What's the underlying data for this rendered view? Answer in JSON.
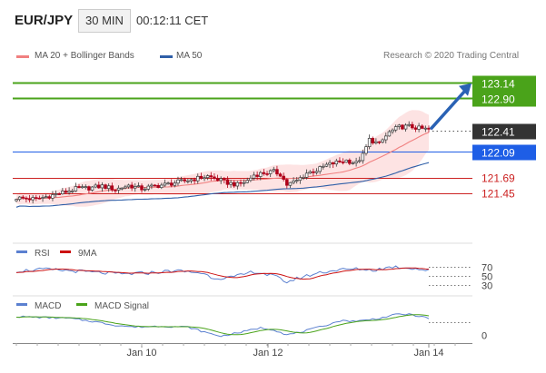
{
  "header": {
    "pair": "EUR/JPY",
    "interval": "30 MIN",
    "time": "00:12:11 CET"
  },
  "legend": {
    "ma20_label": "MA 20 + Bollinger Bands",
    "ma50_label": "MA 50",
    "credit": "Research © 2020 Trading Central"
  },
  "colors": {
    "candle_up": "#3a3a3a",
    "candle_down": "#b0001a",
    "ma20": "#f08080",
    "ma50": "#2f5fa8",
    "bollinger_fill": "#fde3e3",
    "green_level": "#4aa31a",
    "blue_level": "#1e5ee6",
    "red_level": "#cc2222",
    "arrow": "#2a62b4",
    "rsi": "#5b80d0",
    "rsi_ma": "#cc1111",
    "macd": "#5b80d0",
    "macd_signal": "#4aa31a"
  },
  "chart_data": [
    {
      "type": "candlestick",
      "title": "EUR/JPY",
      "ylim": [
        120.8,
        123.4
      ],
      "x_ticks": [
        "Jan 10",
        "Jan 12",
        "Jan 14"
      ],
      "price_levels": [
        {
          "value": 123.14,
          "label": "123.14",
          "style": "green-line-tag"
        },
        {
          "value": 122.9,
          "label": "122.90",
          "style": "green-line-tag"
        },
        {
          "value": 122.41,
          "label": "122.41",
          "style": "current-price-tag"
        },
        {
          "value": 122.09,
          "label": "122.09",
          "style": "blue-line-tag"
        },
        {
          "value": 121.69,
          "label": "121.69",
          "style": "red-line-text"
        },
        {
          "value": 121.45,
          "label": "121.45",
          "style": "red-line-text"
        }
      ],
      "price_anchors": [
        [
          0,
          121.38
        ],
        [
          6,
          121.36
        ],
        [
          10,
          121.41
        ],
        [
          14,
          121.46
        ],
        [
          18,
          121.52
        ],
        [
          22,
          121.53
        ],
        [
          26,
          121.56
        ],
        [
          30,
          121.51
        ],
        [
          34,
          121.57
        ],
        [
          38,
          121.52
        ],
        [
          42,
          121.56
        ],
        [
          46,
          121.59
        ],
        [
          50,
          121.63
        ],
        [
          54,
          121.67
        ],
        [
          58,
          121.71
        ],
        [
          61,
          121.66
        ],
        [
          64,
          121.61
        ],
        [
          67,
          121.58
        ],
        [
          70,
          121.64
        ],
        [
          72,
          121.73
        ],
        [
          75,
          121.76
        ],
        [
          78,
          121.78
        ],
        [
          80,
          121.74
        ],
        [
          82,
          121.58
        ],
        [
          85,
          121.64
        ],
        [
          88,
          121.76
        ],
        [
          91,
          121.8
        ],
        [
          94,
          121.88
        ],
        [
          97,
          121.92
        ],
        [
          100,
          121.95
        ],
        [
          103,
          121.91
        ],
        [
          105,
          122.03
        ],
        [
          107,
          122.27
        ],
        [
          110,
          122.2
        ],
        [
          113,
          122.38
        ],
        [
          116,
          122.46
        ],
        [
          119,
          122.47
        ],
        [
          122,
          122.44
        ],
        [
          125,
          122.42
        ]
      ],
      "series": [
        {
          "name": "MA 20 + Bollinger Bands"
        },
        {
          "name": "MA 50"
        }
      ]
    },
    {
      "type": "line",
      "series": [
        {
          "name": "RSI"
        },
        {
          "name": "9MA"
        }
      ],
      "reference_levels": [
        70,
        50,
        30
      ],
      "rsi_anchors": [
        [
          0,
          61
        ],
        [
          8,
          65
        ],
        [
          16,
          62
        ],
        [
          24,
          58
        ],
        [
          32,
          54
        ],
        [
          40,
          57
        ],
        [
          48,
          62
        ],
        [
          56,
          57
        ],
        [
          60,
          45
        ],
        [
          66,
          47
        ],
        [
          72,
          60
        ],
        [
          78,
          50
        ],
        [
          82,
          36
        ],
        [
          86,
          46
        ],
        [
          92,
          58
        ],
        [
          98,
          64
        ],
        [
          104,
          66
        ],
        [
          108,
          63
        ],
        [
          114,
          71
        ],
        [
          120,
          68
        ],
        [
          125,
          62
        ]
      ]
    },
    {
      "type": "line",
      "series": [
        {
          "name": "MACD"
        },
        {
          "name": "MACD Signal"
        }
      ],
      "zero_label": "0",
      "macd_anchors": [
        [
          0,
          0.04
        ],
        [
          8,
          0.038
        ],
        [
          16,
          0.036
        ],
        [
          24,
          0.028
        ],
        [
          30,
          0.02
        ],
        [
          36,
          0.016
        ],
        [
          44,
          0.018
        ],
        [
          52,
          0.016
        ],
        [
          58,
          0.002
        ],
        [
          62,
          -0.005
        ],
        [
          68,
          0.004
        ],
        [
          74,
          0.014
        ],
        [
          78,
          0.01
        ],
        [
          82,
          -0.002
        ],
        [
          86,
          0.004
        ],
        [
          92,
          0.016
        ],
        [
          98,
          0.03
        ],
        [
          104,
          0.03
        ],
        [
          110,
          0.036
        ],
        [
          116,
          0.046
        ],
        [
          120,
          0.044
        ],
        [
          125,
          0.036
        ]
      ]
    }
  ]
}
